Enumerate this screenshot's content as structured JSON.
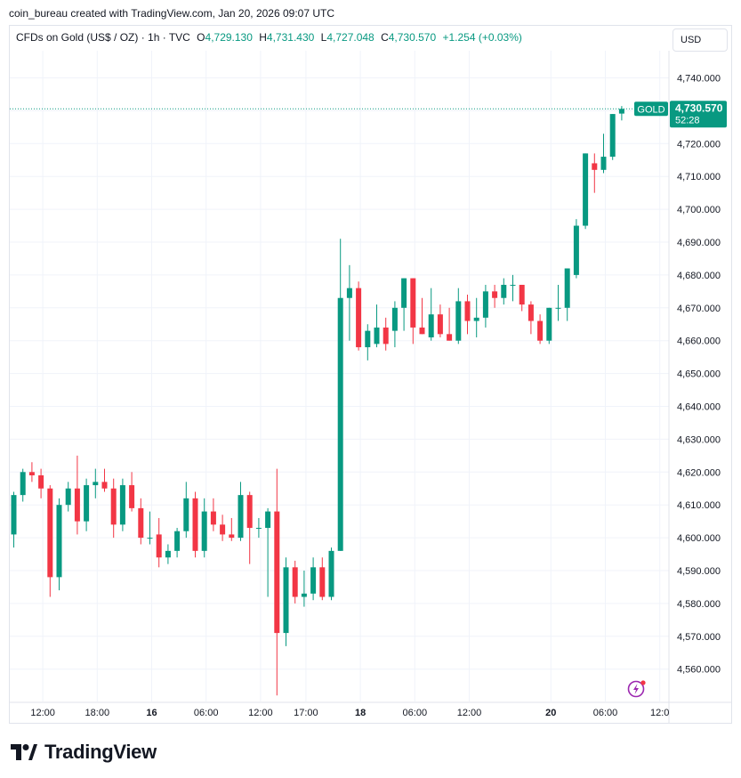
{
  "caption": "coin_bureau created with TradingView.com, Jan 20, 2026 09:07 UTC",
  "legend": {
    "symbol": "CFDs on Gold (US$ / OZ) · 1h · TVC",
    "o_label": "O",
    "o_value": "4,729.130",
    "h_label": "H",
    "h_value": "4,731.430",
    "l_label": "L",
    "l_value": "4,727.048",
    "c_label": "C",
    "c_value": "4,730.570",
    "change": "+1.254 (+0.03%)"
  },
  "currency": "USD",
  "price_tag": {
    "symbol": "GOLD",
    "price": "4,730.570",
    "countdown": "52:28"
  },
  "brand": "TradingView",
  "colors": {
    "up": "#089981",
    "down": "#f23645",
    "grid": "#f0f3fa",
    "axis_text": "#131722"
  },
  "chart_data": {
    "type": "candlestick",
    "ylim": [
      4551,
      4753
    ],
    "yticks": [
      4560,
      4570,
      4580,
      4590,
      4600,
      4610,
      4620,
      4630,
      4640,
      4650,
      4660,
      4670,
      4680,
      4690,
      4700,
      4710,
      4720,
      4730,
      4740
    ],
    "ytick_labels": [
      "4,560.000",
      "4,570.000",
      "4,580.000",
      "4,590.000",
      "4,600.000",
      "4,610.000",
      "4,620.000",
      "4,630.000",
      "4,640.000",
      "4,650.000",
      "4,660.000",
      "4,670.000",
      "4,680.000",
      "4,690.000",
      "4,700.000",
      "4,710.000",
      "4,720.000",
      "4,730.000",
      "4,740.000"
    ],
    "xticks": [
      {
        "label": "12:00",
        "index": 3,
        "bold": false
      },
      {
        "label": "18:00",
        "index": 9,
        "bold": false
      },
      {
        "label": "16",
        "index": 15,
        "bold": true
      },
      {
        "label": "06:00",
        "index": 21,
        "bold": false
      },
      {
        "label": "12:00",
        "index": 27,
        "bold": false
      },
      {
        "label": "17:00",
        "index": 32,
        "bold": false
      },
      {
        "label": "18",
        "index": 38,
        "bold": true
      },
      {
        "label": "06:00",
        "index": 44,
        "bold": false
      },
      {
        "label": "12:00",
        "index": 50,
        "bold": false
      },
      {
        "label": "20",
        "index": 59,
        "bold": true
      },
      {
        "label": "06:00",
        "index": 65,
        "bold": false
      },
      {
        "label": "12:0",
        "index": 71,
        "bold": false
      }
    ],
    "last_price": 4730.57,
    "candles": [
      {
        "o": 4601,
        "h": 4614,
        "l": 4597,
        "c": 4613
      },
      {
        "o": 4613,
        "h": 4621,
        "l": 4611,
        "c": 4620
      },
      {
        "o": 4620,
        "h": 4623,
        "l": 4617,
        "c": 4619
      },
      {
        "o": 4619,
        "h": 4621,
        "l": 4612,
        "c": 4615
      },
      {
        "o": 4615,
        "h": 4616,
        "l": 4582,
        "c": 4588
      },
      {
        "o": 4588,
        "h": 4612,
        "l": 4584,
        "c": 4610
      },
      {
        "o": 4610,
        "h": 4617,
        "l": 4608,
        "c": 4615
      },
      {
        "o": 4615,
        "h": 4625,
        "l": 4601,
        "c": 4605
      },
      {
        "o": 4605,
        "h": 4618,
        "l": 4602,
        "c": 4616
      },
      {
        "o": 4616,
        "h": 4621,
        "l": 4612,
        "c": 4617
      },
      {
        "o": 4617,
        "h": 4621,
        "l": 4614,
        "c": 4615
      },
      {
        "o": 4615,
        "h": 4618,
        "l": 4600,
        "c": 4604
      },
      {
        "o": 4604,
        "h": 4618,
        "l": 4602,
        "c": 4616
      },
      {
        "o": 4616,
        "h": 4620,
        "l": 4608,
        "c": 4609
      },
      {
        "o": 4609,
        "h": 4612,
        "l": 4598,
        "c": 4600
      },
      {
        "o": 4600,
        "h": 4608,
        "l": 4598,
        "c": 4600
      },
      {
        "o": 4601,
        "h": 4606,
        "l": 4591,
        "c": 4594
      },
      {
        "o": 4594,
        "h": 4598,
        "l": 4592,
        "c": 4596
      },
      {
        "o": 4596,
        "h": 4603,
        "l": 4594,
        "c": 4602
      },
      {
        "o": 4602,
        "h": 4617,
        "l": 4600,
        "c": 4612
      },
      {
        "o": 4612,
        "h": 4614,
        "l": 4594,
        "c": 4596
      },
      {
        "o": 4596,
        "h": 4612,
        "l": 4594,
        "c": 4608
      },
      {
        "o": 4608,
        "h": 4612,
        "l": 4602,
        "c": 4604
      },
      {
        "o": 4604,
        "h": 4607,
        "l": 4599,
        "c": 4601
      },
      {
        "o": 4601,
        "h": 4606,
        "l": 4599,
        "c": 4600
      },
      {
        "o": 4600,
        "h": 4617,
        "l": 4599,
        "c": 4613
      },
      {
        "o": 4613,
        "h": 4614,
        "l": 4592,
        "c": 4603
      },
      {
        "o": 4603,
        "h": 4606,
        "l": 4600,
        "c": 4603
      },
      {
        "o": 4603,
        "h": 4609,
        "l": 4582,
        "c": 4608
      },
      {
        "o": 4608,
        "h": 4621,
        "l": 4552,
        "c": 4571
      },
      {
        "o": 4571,
        "h": 4594,
        "l": 4567,
        "c": 4591
      },
      {
        "o": 4591,
        "h": 4593,
        "l": 4580,
        "c": 4582
      },
      {
        "o": 4582,
        "h": 4590,
        "l": 4579,
        "c": 4583
      },
      {
        "o": 4583,
        "h": 4594,
        "l": 4581,
        "c": 4591
      },
      {
        "o": 4591,
        "h": 4594,
        "l": 4581,
        "c": 4582
      },
      {
        "o": 4582,
        "h": 4597,
        "l": 4581,
        "c": 4596
      },
      {
        "o": 4596,
        "h": 4691,
        "l": 4596,
        "c": 4673
      },
      {
        "o": 4673,
        "h": 4683,
        "l": 4660,
        "c": 4676
      },
      {
        "o": 4676,
        "h": 4678,
        "l": 4657,
        "c": 4658
      },
      {
        "o": 4658,
        "h": 4665,
        "l": 4654,
        "c": 4663
      },
      {
        "o": 4659,
        "h": 4671,
        "l": 4658,
        "c": 4664
      },
      {
        "o": 4664,
        "h": 4667,
        "l": 4657,
        "c": 4659
      },
      {
        "o": 4663,
        "h": 4672,
        "l": 4658,
        "c": 4670
      },
      {
        "o": 4670,
        "h": 4679,
        "l": 4663,
        "c": 4679
      },
      {
        "o": 4679,
        "h": 4679,
        "l": 4659,
        "c": 4664
      },
      {
        "o": 4664,
        "h": 4673,
        "l": 4662,
        "c": 4662
      },
      {
        "o": 4661,
        "h": 4676,
        "l": 4660,
        "c": 4668
      },
      {
        "o": 4668,
        "h": 4671,
        "l": 4661,
        "c": 4662
      },
      {
        "o": 4662,
        "h": 4670,
        "l": 4660,
        "c": 4660
      },
      {
        "o": 4660,
        "h": 4676,
        "l": 4659,
        "c": 4672
      },
      {
        "o": 4672,
        "h": 4674,
        "l": 4662,
        "c": 4666
      },
      {
        "o": 4666,
        "h": 4673,
        "l": 4661,
        "c": 4667
      },
      {
        "o": 4667,
        "h": 4677,
        "l": 4664,
        "c": 4675
      },
      {
        "o": 4675,
        "h": 4677,
        "l": 4670,
        "c": 4673
      },
      {
        "o": 4673,
        "h": 4679,
        "l": 4671,
        "c": 4677
      },
      {
        "o": 4677,
        "h": 4680,
        "l": 4672,
        "c": 4677
      },
      {
        "o": 4677,
        "h": 4677,
        "l": 4669,
        "c": 4671
      },
      {
        "o": 4671,
        "h": 4672,
        "l": 4662,
        "c": 4666
      },
      {
        "o": 4666,
        "h": 4668,
        "l": 4659,
        "c": 4660
      },
      {
        "o": 4660,
        "h": 4670,
        "l": 4659,
        "c": 4670
      },
      {
        "o": 4670,
        "h": 4677,
        "l": 4666,
        "c": 4670
      },
      {
        "o": 4670,
        "h": 4682,
        "l": 4666,
        "c": 4682
      },
      {
        "o": 4680,
        "h": 4697,
        "l": 4679,
        "c": 4695
      },
      {
        "o": 4695,
        "h": 4717,
        "l": 4694,
        "c": 4717
      },
      {
        "o": 4714,
        "h": 4717,
        "l": 4705,
        "c": 4712
      },
      {
        "o": 4712,
        "h": 4723,
        "l": 4711,
        "c": 4716
      },
      {
        "o": 4716,
        "h": 4729,
        "l": 4715,
        "c": 4729
      },
      {
        "o": 4729.13,
        "h": 4731.43,
        "l": 4727.048,
        "c": 4730.57
      }
    ]
  }
}
